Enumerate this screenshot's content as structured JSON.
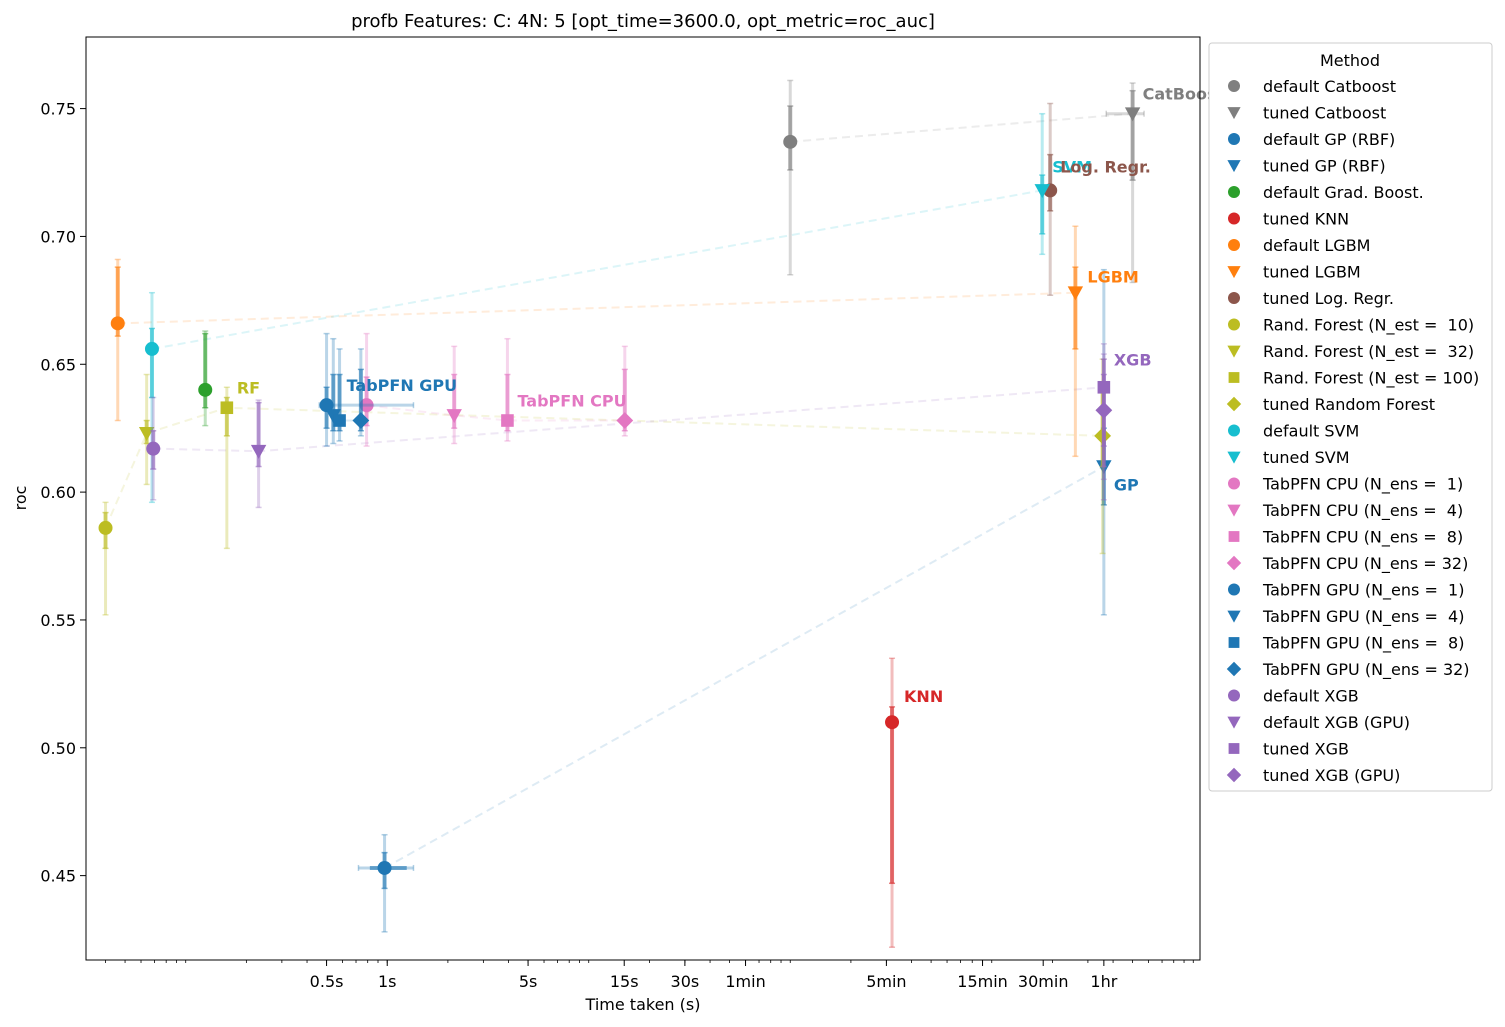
{
  "chart_data": {
    "type": "scatter",
    "title": "profb Features: C: 4N: 5 [opt_time=3600.0, opt_metric=roc_auc]",
    "xlabel": "Time taken (s)",
    "ylabel": "roc",
    "x_scale": "log",
    "xlim": [
      0.032,
      10800
    ],
    "ylim": [
      0.417,
      0.778
    ],
    "x_ticks": [
      {
        "value": 0.5,
        "label": "0.5s"
      },
      {
        "value": 1,
        "label": "1s"
      },
      {
        "value": 5,
        "label": "5s"
      },
      {
        "value": 15,
        "label": "15s"
      },
      {
        "value": 30,
        "label": "30s"
      },
      {
        "value": 60,
        "label": "1min"
      },
      {
        "value": 300,
        "label": "5min"
      },
      {
        "value": 900,
        "label": "15min"
      },
      {
        "value": 1800,
        "label": "30min"
      },
      {
        "value": 3600,
        "label": "1hr"
      }
    ],
    "y_ticks": [
      {
        "value": 0.45,
        "label": "0.45"
      },
      {
        "value": 0.5,
        "label": "0.50"
      },
      {
        "value": 0.55,
        "label": "0.55"
      },
      {
        "value": 0.6,
        "label": "0.60"
      },
      {
        "value": 0.65,
        "label": "0.65"
      },
      {
        "value": 0.7,
        "label": "0.70"
      },
      {
        "value": 0.75,
        "label": "0.75"
      }
    ],
    "grid": false,
    "legend": {
      "title": "Method",
      "placement": "outside-right"
    },
    "series": [
      {
        "name": "default Catboost",
        "color": "#7f7f7f",
        "marker": "circle",
        "x": 100,
        "y": 0.737,
        "y_err": [
          0.685,
          0.761
        ],
        "y_err_inner": [
          0.726,
          0.751
        ]
      },
      {
        "name": "tuned Catboost",
        "color": "#7f7f7f",
        "marker": "triangle-down",
        "x": 5000,
        "y": 0.748,
        "y_err": [
          0.682,
          0.76
        ],
        "y_err_inner": [
          0.722,
          0.757
        ],
        "x_err": [
          3700,
          5700
        ]
      },
      {
        "name": "default GP (RBF)",
        "color": "#1f77b4",
        "marker": "circle",
        "x": 0.97,
        "y": 0.453,
        "y_err": [
          0.428,
          0.466
        ],
        "y_err_inner": [
          0.445,
          0.459
        ],
        "x_err": [
          0.72,
          1.35
        ],
        "x_err_inner": [
          0.82,
          1.25
        ]
      },
      {
        "name": "tuned GP (RBF)",
        "color": "#1f77b4",
        "marker": "triangle-down",
        "x": 3600,
        "y": 0.61,
        "y_err": [
          0.552,
          0.687
        ],
        "y_err_inner": [
          0.595,
          0.625
        ]
      },
      {
        "name": "default Grad. Boost.",
        "color": "#2ca02c",
        "marker": "circle",
        "x": 0.125,
        "y": 0.64,
        "y_err": [
          0.626,
          0.663
        ],
        "y_err_inner": [
          0.633,
          0.662
        ]
      },
      {
        "name": "tuned KNN",
        "color": "#d62728",
        "marker": "circle",
        "x": 320,
        "y": 0.51,
        "y_err": [
          0.422,
          0.535
        ],
        "y_err_inner": [
          0.447,
          0.516
        ]
      },
      {
        "name": "default LGBM",
        "color": "#ff7f0e",
        "marker": "circle",
        "x": 0.046,
        "y": 0.666,
        "y_err": [
          0.628,
          0.691
        ],
        "y_err_inner": [
          0.661,
          0.688
        ]
      },
      {
        "name": "tuned LGBM",
        "color": "#ff7f0e",
        "marker": "triangle-down",
        "x": 2600,
        "y": 0.678,
        "y_err": [
          0.614,
          0.704
        ],
        "y_err_inner": [
          0.656,
          0.688
        ]
      },
      {
        "name": "tuned Log. Regr.",
        "color": "#8c564b",
        "marker": "circle",
        "x": 1950,
        "y": 0.718,
        "y_err": [
          0.677,
          0.752
        ],
        "y_err_inner": [
          0.71,
          0.732
        ]
      },
      {
        "name": "Rand. Forest (N_est =  10)",
        "color": "#bcbd22",
        "marker": "circle",
        "x": 0.04,
        "y": 0.586,
        "y_err": [
          0.552,
          0.596
        ],
        "y_err_inner": [
          0.578,
          0.592
        ]
      },
      {
        "name": "Rand. Forest (N_est =  32)",
        "color": "#bcbd22",
        "marker": "triangle-down",
        "x": 0.064,
        "y": 0.623,
        "y_err": [
          0.603,
          0.646
        ],
        "y_err_inner": [
          0.619,
          0.628
        ]
      },
      {
        "name": "Rand. Forest (N_est = 100)",
        "color": "#bcbd22",
        "marker": "square",
        "x": 0.16,
        "y": 0.633,
        "y_err": [
          0.578,
          0.641
        ],
        "y_err_inner": [
          0.622,
          0.637
        ]
      },
      {
        "name": "tuned Random Forest",
        "color": "#bcbd22",
        "marker": "diamond",
        "x": 3550,
        "y": 0.622,
        "y_err": [
          0.576,
          0.652
        ],
        "y_err_inner": [
          0.61,
          0.64
        ]
      },
      {
        "name": "default SVM",
        "color": "#17becf",
        "marker": "circle",
        "x": 0.068,
        "y": 0.656,
        "y_err": [
          0.596,
          0.678
        ],
        "y_err_inner": [
          0.637,
          0.664
        ]
      },
      {
        "name": "tuned SVM",
        "color": "#17becf",
        "marker": "triangle-down",
        "x": 1780,
        "y": 0.718,
        "y_err": [
          0.693,
          0.748
        ],
        "y_err_inner": [
          0.701,
          0.724
        ]
      },
      {
        "name": "TabPFN CPU (N_ens =  1)",
        "color": "#e377c2",
        "marker": "circle",
        "x": 0.79,
        "y": 0.634,
        "y_err": [
          0.618,
          0.662
        ],
        "y_err_inner": [
          0.626,
          0.645
        ]
      },
      {
        "name": "TabPFN CPU (N_ens =  4)",
        "color": "#e377c2",
        "marker": "triangle-down",
        "x": 2.15,
        "y": 0.63,
        "y_err": [
          0.619,
          0.657
        ],
        "y_err_inner": [
          0.625,
          0.646
        ]
      },
      {
        "name": "TabPFN CPU (N_ens =  8)",
        "color": "#e377c2",
        "marker": "square",
        "x": 3.95,
        "y": 0.628,
        "y_err": [
          0.62,
          0.66
        ],
        "y_err_inner": [
          0.624,
          0.646
        ]
      },
      {
        "name": "TabPFN CPU (N_ens = 32)",
        "color": "#e377c2",
        "marker": "diamond",
        "x": 15.1,
        "y": 0.628,
        "y_err": [
          0.622,
          0.657
        ],
        "y_err_inner": [
          0.624,
          0.648
        ]
      },
      {
        "name": "TabPFN GPU (N_ens =  1)",
        "color": "#1f77b4",
        "marker": "circle",
        "x": 0.5,
        "y": 0.634,
        "y_err": [
          0.618,
          0.662
        ],
        "y_err_inner": [
          0.625,
          0.641
        ],
        "x_err": [
          0.46,
          1.35
        ]
      },
      {
        "name": "TabPFN GPU (N_ens =  4)",
        "color": "#1f77b4",
        "marker": "triangle-down",
        "x": 0.54,
        "y": 0.63,
        "y_err": [
          0.619,
          0.66
        ],
        "y_err_inner": [
          0.624,
          0.646
        ]
      },
      {
        "name": "TabPFN GPU (N_ens =  8)",
        "color": "#1f77b4",
        "marker": "square",
        "x": 0.58,
        "y": 0.628,
        "y_err": [
          0.62,
          0.656
        ],
        "y_err_inner": [
          0.624,
          0.646
        ]
      },
      {
        "name": "TabPFN GPU (N_ens = 32)",
        "color": "#1f77b4",
        "marker": "diamond",
        "x": 0.74,
        "y": 0.628,
        "y_err": [
          0.622,
          0.656
        ],
        "y_err_inner": [
          0.624,
          0.648
        ]
      },
      {
        "name": "default XGB",
        "color": "#9467bd",
        "marker": "circle",
        "x": 0.069,
        "y": 0.617,
        "y_err": [
          0.597,
          0.637
        ],
        "y_err_inner": [
          0.609,
          0.624
        ]
      },
      {
        "name": "default XGB (GPU)",
        "color": "#9467bd",
        "marker": "triangle-down",
        "x": 0.23,
        "y": 0.616,
        "y_err": [
          0.594,
          0.636
        ],
        "y_err_inner": [
          0.61,
          0.635
        ]
      },
      {
        "name": "tuned XGB",
        "color": "#9467bd",
        "marker": "square",
        "x": 3600,
        "y": 0.641,
        "y_err": [
          0.597,
          0.658
        ],
        "y_err_inner": [
          0.61,
          0.652
        ]
      },
      {
        "name": "tuned XGB (GPU)",
        "color": "#9467bd",
        "marker": "diamond",
        "x": 3600,
        "y": 0.632,
        "y_err": [
          0.605,
          0.654
        ],
        "y_err_inner": [
          0.618,
          0.646
        ]
      }
    ],
    "connectors": [
      {
        "color": "#7f7f7f",
        "points": [
          [
            100,
            0.737
          ],
          [
            5000,
            0.748
          ]
        ]
      },
      {
        "color": "#1f77b4",
        "points": [
          [
            0.97,
            0.453
          ],
          [
            3600,
            0.61
          ]
        ]
      },
      {
        "color": "#ff7f0e",
        "points": [
          [
            0.046,
            0.666
          ],
          [
            2600,
            0.678
          ]
        ]
      },
      {
        "color": "#17becf",
        "points": [
          [
            0.068,
            0.656
          ],
          [
            1780,
            0.718
          ]
        ]
      },
      {
        "color": "#bcbd22",
        "points": [
          [
            0.04,
            0.586
          ],
          [
            0.064,
            0.623
          ],
          [
            0.16,
            0.633
          ],
          [
            3550,
            0.622
          ]
        ]
      },
      {
        "color": "#9467bd",
        "points": [
          [
            0.069,
            0.617
          ],
          [
            0.23,
            0.616
          ],
          [
            3600,
            0.641
          ]
        ]
      },
      {
        "color": "#e377c2",
        "points": [
          [
            0.79,
            0.634
          ],
          [
            2.15,
            0.63
          ],
          [
            3.95,
            0.628
          ],
          [
            15.1,
            0.628
          ]
        ]
      },
      {
        "color": "#1f77b4",
        "points": [
          [
            0.5,
            0.634
          ],
          [
            0.54,
            0.63
          ],
          [
            0.58,
            0.628
          ],
          [
            0.74,
            0.628
          ]
        ]
      }
    ],
    "annotations": [
      {
        "text": "CatBoost",
        "color": "#7f7f7f",
        "x": 5000,
        "y": 0.748
      },
      {
        "text": "SVM",
        "color": "#17becf",
        "x": 1780,
        "y": 0.718
      },
      {
        "text": "Log. Regr.",
        "color": "#8c564b",
        "x": 1950,
        "y": 0.718
      },
      {
        "text": "LGBM",
        "color": "#ff7f0e",
        "x": 2600,
        "y": 0.678
      },
      {
        "text": "XGB",
        "color": "#9467bd",
        "x": 3600,
        "y": 0.641
      },
      {
        "text": "GP",
        "color": "#1f77b4",
        "x": 3600,
        "y": 0.61
      },
      {
        "text": "RF",
        "color": "#bcbd22",
        "x": 0.16,
        "y": 0.633
      },
      {
        "text": "TabPFN GPU",
        "color": "#1f77b4",
        "x": 0.5,
        "y": 0.634
      },
      {
        "text": "TabPFN CPU",
        "color": "#e377c2",
        "x": 3.95,
        "y": 0.628
      },
      {
        "text": "KNN",
        "color": "#d62728",
        "x": 320,
        "y": 0.51
      }
    ]
  }
}
